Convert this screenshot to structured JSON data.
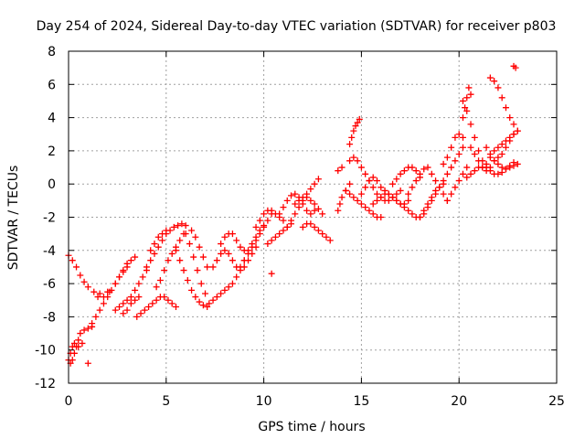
{
  "chart_data": {
    "type": "scatter",
    "title": "Day 254 of 2024, Sidereal Day-to-day VTEC variation (SDTVAR) for receiver p803",
    "xlabel": "GPS time / hours",
    "ylabel": "SDTVAR / TECUs",
    "xlim": [
      0,
      25
    ],
    "ylim": [
      -12,
      8
    ],
    "xticks": [
      0,
      5,
      10,
      15,
      20,
      25
    ],
    "yticks": [
      -12,
      -10,
      -8,
      -6,
      -4,
      -2,
      0,
      2,
      4,
      6,
      8
    ],
    "xtick_labels": [
      "0",
      "5",
      "10",
      "15",
      "20",
      "25"
    ],
    "ytick_labels": [
      "-12",
      "-10",
      "-8",
      "-6",
      "-4",
      "-2",
      "0",
      "2",
      "4",
      "6",
      "8"
    ],
    "grid": true,
    "marker": "+",
    "color": "#ff0000",
    "series": [
      {
        "x": [
          0.0,
          0.1,
          0.2,
          0.3,
          0.4,
          0.5,
          0.6,
          0.8,
          1.0,
          1.2
        ],
        "y": [
          -10.6,
          -10.2,
          -9.8,
          -9.6,
          -9.8,
          -9.4,
          -9.0,
          -8.8,
          -8.7,
          -8.6
        ]
      },
      {
        "x": [
          0.1,
          0.2,
          0.3,
          0.5,
          0.7
        ],
        "y": [
          -10.8,
          -10.6,
          -10.2,
          -9.8,
          -9.6
        ]
      },
      {
        "x": [
          1.0
        ],
        "y": [
          -10.8
        ]
      },
      {
        "x": [
          0.0,
          0.2,
          0.4,
          0.6,
          0.8,
          1.0,
          1.3,
          1.6,
          2.0
        ],
        "y": [
          -4.3,
          -4.6,
          -5.0,
          -5.5,
          -5.9,
          -6.2,
          -6.5,
          -6.6,
          -6.5
        ]
      },
      {
        "x": [
          1.2,
          1.4,
          1.6,
          1.8,
          2.0,
          2.2,
          2.4,
          2.6,
          2.8,
          3.0
        ],
        "y": [
          -8.4,
          -8.0,
          -7.6,
          -7.2,
          -6.8,
          -6.4,
          -6.0,
          -5.6,
          -5.3,
          -5.0
        ]
      },
      {
        "x": [
          1.5,
          1.8,
          2.1,
          2.4,
          2.6,
          2.8,
          3.0,
          3.2,
          3.4
        ],
        "y": [
          -6.8,
          -6.8,
          -6.5,
          -6.0,
          -5.6,
          -5.2,
          -4.8,
          -4.6,
          -4.4
        ]
      },
      {
        "x": [
          2.4,
          2.6,
          2.8,
          3.0,
          3.2,
          3.4,
          3.6,
          3.8,
          4.0
        ],
        "y": [
          -7.6,
          -7.4,
          -7.2,
          -7.0,
          -6.8,
          -6.4,
          -6.0,
          -5.6,
          -5.2
        ]
      },
      {
        "x": [
          2.8,
          3.0,
          3.2,
          3.4,
          3.6
        ],
        "y": [
          -7.8,
          -7.6,
          -7.2,
          -7.0,
          -6.8
        ]
      },
      {
        "x": [
          3.5,
          3.7,
          3.9,
          4.1,
          4.3,
          4.5,
          4.7,
          4.9,
          5.1,
          5.3,
          5.5
        ],
        "y": [
          -8.0,
          -7.8,
          -7.6,
          -7.4,
          -7.2,
          -7.0,
          -6.8,
          -6.8,
          -7.0,
          -7.2,
          -7.4
        ]
      },
      {
        "x": [
          4.0,
          4.2,
          4.4,
          4.6,
          4.8,
          5.0,
          5.2,
          5.4,
          5.6,
          5.8,
          6.0
        ],
        "y": [
          -5.0,
          -4.6,
          -4.2,
          -3.8,
          -3.4,
          -3.0,
          -2.8,
          -2.6,
          -2.5,
          -2.4,
          -2.5
        ]
      },
      {
        "x": [
          4.5,
          4.7,
          4.9,
          5.1,
          5.3,
          5.5,
          5.7,
          5.9
        ],
        "y": [
          -6.2,
          -5.8,
          -5.2,
          -4.6,
          -4.2,
          -3.8,
          -3.4,
          -3.0
        ]
      },
      {
        "x": [
          4.2,
          4.4,
          4.6,
          4.8,
          5.0
        ],
        "y": [
          -4.0,
          -3.6,
          -3.2,
          -3.0,
          -2.8
        ]
      },
      {
        "x": [
          5.5,
          5.7,
          5.9,
          6.1,
          6.3,
          6.5,
          6.7,
          6.9,
          7.1
        ],
        "y": [
          -4.0,
          -4.6,
          -5.2,
          -5.8,
          -6.4,
          -6.8,
          -7.1,
          -7.3,
          -7.4
        ]
      },
      {
        "x": [
          6.0,
          6.2,
          6.4,
          6.6,
          6.8,
          7.0
        ],
        "y": [
          -3.0,
          -3.6,
          -4.4,
          -5.2,
          -6.0,
          -6.6
        ]
      },
      {
        "x": [
          6.3,
          6.5,
          6.7,
          6.9,
          7.1
        ],
        "y": [
          -2.8,
          -3.2,
          -3.8,
          -4.4,
          -5.0
        ]
      },
      {
        "x": [
          7.2,
          7.4,
          7.6,
          7.8,
          8.0,
          8.2
        ],
        "y": [
          -7.2,
          -7.0,
          -6.8,
          -6.6,
          -6.4,
          -6.2
        ]
      },
      {
        "x": [
          7.4,
          7.6,
          7.8,
          8.0,
          8.2,
          8.4,
          8.6,
          8.8,
          9.0,
          9.2,
          9.4,
          9.6
        ],
        "y": [
          -5.0,
          -4.6,
          -4.2,
          -4.0,
          -4.2,
          -4.6,
          -5.0,
          -5.2,
          -5.0,
          -4.6,
          -4.2,
          -3.8
        ]
      },
      {
        "x": [
          7.8,
          8.0,
          8.2,
          8.4,
          8.6,
          8.8,
          9.0
        ],
        "y": [
          -3.6,
          -3.2,
          -3.0,
          -3.0,
          -3.4,
          -3.8,
          -4.0
        ]
      },
      {
        "x": [
          8.4,
          8.6,
          8.8,
          9.0,
          9.2,
          9.4,
          9.6,
          9.8,
          10.0
        ],
        "y": [
          -6.0,
          -5.6,
          -5.0,
          -4.6,
          -4.0,
          -3.6,
          -3.2,
          -2.8,
          -2.5
        ]
      },
      {
        "x": [
          9.0,
          9.2,
          9.4,
          9.6,
          9.8,
          10.0,
          10.2,
          10.4
        ],
        "y": [
          -4.6,
          -4.2,
          -3.8,
          -3.4,
          -3.0,
          -2.6,
          -2.2,
          -1.8
        ]
      },
      {
        "x": [
          9.6,
          9.8,
          10.0,
          10.2,
          10.4,
          10.6,
          10.8,
          11.0
        ],
        "y": [
          -2.6,
          -2.2,
          -1.8,
          -1.6,
          -1.6,
          -1.8,
          -2.0,
          -2.2
        ]
      },
      {
        "x": [
          10.4
        ],
        "y": [
          -5.4
        ]
      },
      {
        "x": [
          10.2,
          10.4,
          10.6,
          10.8,
          11.0,
          11.2,
          11.4
        ],
        "y": [
          -3.6,
          -3.4,
          -3.2,
          -3.0,
          -2.8,
          -2.6,
          -2.4
        ]
      },
      {
        "x": [
          10.8,
          11.0,
          11.2,
          11.4,
          11.6,
          11.8,
          12.0,
          12.2,
          12.4,
          12.6
        ],
        "y": [
          -1.8,
          -1.4,
          -1.0,
          -0.7,
          -0.6,
          -0.8,
          -1.2,
          -1.6,
          -1.8,
          -1.6
        ]
      },
      {
        "x": [
          11.2,
          11.4,
          11.6,
          11.8,
          12.0,
          12.2,
          12.4,
          12.6,
          12.8
        ],
        "y": [
          -2.6,
          -2.2,
          -1.8,
          -1.4,
          -1.0,
          -0.6,
          -0.3,
          0.0,
          0.3
        ]
      },
      {
        "x": [
          12.0,
          12.2,
          12.4,
          12.6,
          12.8,
          13.0,
          13.2,
          13.4
        ],
        "y": [
          -2.6,
          -2.4,
          -2.4,
          -2.6,
          -2.8,
          -3.0,
          -3.2,
          -3.4
        ]
      },
      {
        "x": [
          11.6,
          11.8,
          12.0,
          12.2,
          12.4,
          12.6,
          12.8,
          13.0
        ],
        "y": [
          -1.2,
          -1.0,
          -0.8,
          -0.8,
          -1.0,
          -1.2,
          -1.5,
          -1.8
        ]
      },
      {
        "x": [
          13.8,
          13.9,
          14.0,
          14.2,
          14.4
        ],
        "y": [
          -1.6,
          -1.2,
          -0.8,
          -0.4,
          0.0
        ]
      },
      {
        "x": [
          13.8,
          14.0
        ],
        "y": [
          0.8,
          1.0
        ]
      },
      {
        "x": [
          14.2,
          14.4,
          14.6,
          14.8,
          15.0,
          15.2,
          15.4,
          15.6,
          15.8,
          16.0
        ],
        "y": [
          -0.4,
          -0.6,
          -0.8,
          -1.0,
          -1.2,
          -1.4,
          -1.6,
          -1.8,
          -2.0,
          -2.0
        ]
      },
      {
        "x": [
          14.4,
          14.5,
          14.6,
          14.7,
          14.8,
          14.9
        ],
        "y": [
          2.4,
          2.8,
          3.2,
          3.5,
          3.7,
          3.9
        ]
      },
      {
        "x": [
          14.4,
          14.6,
          14.8,
          15.0,
          15.2,
          15.4,
          15.6,
          15.8,
          16.0,
          16.2,
          16.4,
          16.6,
          16.8,
          17.0
        ],
        "y": [
          1.4,
          1.6,
          1.4,
          1.0,
          0.6,
          0.2,
          -0.2,
          -0.6,
          -0.8,
          -1.0,
          -1.0,
          -0.8,
          -0.6,
          -0.4
        ]
      },
      {
        "x": [
          15.0,
          15.2,
          15.4,
          15.6,
          15.8,
          16.0,
          16.2,
          16.4,
          16.6,
          16.8,
          17.0,
          17.2,
          17.4
        ],
        "y": [
          -0.6,
          -0.2,
          0.2,
          0.4,
          0.2,
          -0.2,
          -0.4,
          -0.6,
          -0.8,
          -1.0,
          -1.2,
          -1.2,
          -1.0
        ]
      },
      {
        "x": [
          15.6,
          15.8,
          16.0,
          16.2,
          16.4,
          16.6,
          16.8,
          17.0,
          17.2,
          17.4,
          17.6,
          17.8,
          18.0,
          18.2,
          18.4
        ],
        "y": [
          -1.2,
          -1.0,
          -0.8,
          -0.6,
          -0.6,
          -0.8,
          -1.0,
          -1.2,
          -1.4,
          -1.6,
          -1.8,
          -2.0,
          -2.0,
          -1.8,
          -1.4
        ]
      },
      {
        "x": [
          16.6,
          16.8,
          17.0,
          17.2,
          17.4,
          17.6,
          17.8,
          18.0
        ],
        "y": [
          0.0,
          0.3,
          0.6,
          0.8,
          1.0,
          1.0,
          0.8,
          0.4
        ]
      },
      {
        "x": [
          17.4,
          17.6,
          17.8,
          18.0,
          18.2,
          18.4,
          18.6,
          18.8,
          19.0,
          19.2,
          19.4
        ],
        "y": [
          -0.6,
          -0.2,
          0.2,
          0.6,
          0.9,
          1.0,
          0.6,
          0.2,
          -0.2,
          -0.6,
          -1.0
        ]
      },
      {
        "x": [
          18.0,
          18.2,
          18.4,
          18.6,
          18.8,
          19.0,
          19.2
        ],
        "y": [
          -2.0,
          -1.6,
          -1.2,
          -0.8,
          -0.4,
          -0.2,
          0.0
        ]
      },
      {
        "x": [
          18.6,
          18.8,
          19.0,
          19.2,
          19.4,
          19.6,
          19.8,
          20.0,
          20.2
        ],
        "y": [
          -1.0,
          -0.6,
          -0.2,
          0.2,
          0.6,
          1.0,
          1.4,
          1.8,
          2.2
        ]
      },
      {
        "x": [
          19.2,
          19.4,
          19.6,
          19.8,
          20.0,
          20.2
        ],
        "y": [
          1.2,
          1.6,
          2.2,
          2.8,
          3.0,
          2.8
        ]
      },
      {
        "x": [
          19.4,
          19.6,
          19.8,
          20.0,
          20.2,
          20.4
        ],
        "y": [
          -1.0,
          -0.6,
          -0.2,
          0.2,
          0.6,
          1.0
        ]
      },
      {
        "x": [
          20.2,
          20.4,
          20.6,
          20.8,
          21.0,
          21.2,
          21.4,
          21.6,
          21.8,
          22.0,
          22.2,
          22.4,
          22.6,
          22.8
        ],
        "y": [
          5.0,
          4.4,
          3.6,
          2.8,
          2.0,
          1.4,
          1.0,
          0.8,
          0.6,
          0.6,
          0.7,
          0.9,
          1.1,
          1.3
        ]
      },
      {
        "x": [
          20.2,
          20.3,
          20.4,
          20.5,
          20.6
        ],
        "y": [
          4.0,
          4.6,
          5.2,
          5.8,
          5.4
        ]
      },
      {
        "x": [
          20.4,
          20.6,
          20.8,
          21.0,
          21.2,
          21.4,
          21.6,
          21.8,
          22.0,
          22.2,
          22.4,
          22.6,
          22.8
        ],
        "y": [
          0.4,
          0.6,
          0.8,
          1.0,
          1.0,
          1.2,
          1.6,
          2.0,
          2.2,
          2.4,
          2.6,
          2.8,
          3.0
        ]
      },
      {
        "x": [
          20.6,
          20.8,
          21.0,
          21.2,
          21.4,
          21.6,
          21.8,
          22.0,
          22.2,
          22.4,
          22.6,
          22.8,
          23.0
        ],
        "y": [
          2.2,
          1.8,
          1.4,
          1.0,
          0.8,
          1.0,
          1.4,
          1.6,
          1.8,
          2.2,
          2.6,
          3.0,
          3.2
        ]
      },
      {
        "x": [
          21.4,
          21.6,
          21.8,
          22.0,
          22.2,
          22.4,
          22.6,
          22.8,
          23.0
        ],
        "y": [
          2.2,
          1.8,
          1.4,
          1.2,
          1.0,
          0.9,
          1.0,
          1.1,
          1.2
        ]
      },
      {
        "x": [
          21.6,
          21.8,
          22.0,
          22.2,
          22.4,
          22.6,
          22.8,
          23.0
        ],
        "y": [
          6.4,
          6.2,
          5.8,
          5.2,
          4.6,
          4.0,
          3.6,
          3.2
        ]
      },
      {
        "x": [
          22.8,
          22.9
        ],
        "y": [
          7.1,
          7.0
        ]
      }
    ]
  }
}
